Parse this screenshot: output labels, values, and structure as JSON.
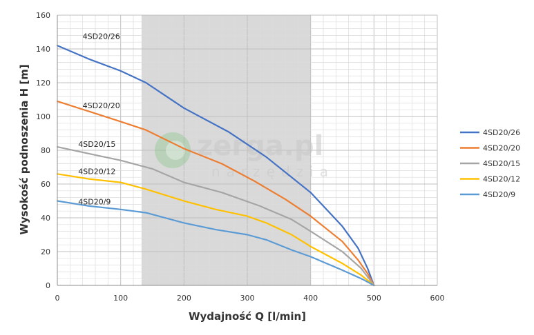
{
  "chart_data": {
    "type": "line",
    "xlabel": "Wydajność Q [l/min]",
    "ylabel": "Wysokość podnoszenia H [m]",
    "xlim": [
      0,
      600
    ],
    "ylim": [
      0,
      160
    ],
    "x_ticks": [
      "0",
      "100",
      "200",
      "300",
      "400",
      "500",
      "600"
    ],
    "y_ticks": [
      "0",
      "20",
      "40",
      "60",
      "80",
      "100",
      "120",
      "140",
      "160"
    ],
    "grid": true,
    "legend_position": "right",
    "shaded_range": [
      133,
      400
    ],
    "shaded_color": "#d9d9d9",
    "series": [
      {
        "name": "4SD20/26",
        "color": "#4472c4",
        "points": [
          [
            0,
            142
          ],
          [
            50,
            134
          ],
          [
            100,
            127
          ],
          [
            140,
            120
          ],
          [
            200,
            105
          ],
          [
            270,
            91
          ],
          [
            330,
            76
          ],
          [
            400,
            55
          ],
          [
            450,
            35
          ],
          [
            475,
            22
          ],
          [
            490,
            10
          ],
          [
            500,
            0
          ]
        ]
      },
      {
        "name": "4SD20/20",
        "color": "#ed7d31",
        "points": [
          [
            0,
            109
          ],
          [
            50,
            103
          ],
          [
            100,
            97
          ],
          [
            140,
            92
          ],
          [
            200,
            81
          ],
          [
            260,
            72
          ],
          [
            310,
            62
          ],
          [
            360,
            51
          ],
          [
            400,
            41
          ],
          [
            450,
            26
          ],
          [
            475,
            15
          ],
          [
            490,
            7
          ],
          [
            500,
            0
          ]
        ]
      },
      {
        "name": "4SD20/15",
        "color": "#a5a5a5",
        "points": [
          [
            0,
            82
          ],
          [
            50,
            78
          ],
          [
            100,
            74
          ],
          [
            150,
            69
          ],
          [
            200,
            61
          ],
          [
            260,
            55
          ],
          [
            320,
            47
          ],
          [
            370,
            39
          ],
          [
            400,
            32
          ],
          [
            450,
            20
          ],
          [
            480,
            10
          ],
          [
            500,
            0
          ]
        ]
      },
      {
        "name": "4SD20/12",
        "color": "#ffc000",
        "points": [
          [
            0,
            66
          ],
          [
            50,
            63
          ],
          [
            100,
            61
          ],
          [
            140,
            57
          ],
          [
            200,
            50
          ],
          [
            250,
            45
          ],
          [
            300,
            41
          ],
          [
            330,
            37
          ],
          [
            370,
            30
          ],
          [
            400,
            23
          ],
          [
            450,
            13
          ],
          [
            480,
            6
          ],
          [
            500,
            0
          ]
        ]
      },
      {
        "name": "4SD20/9",
        "color": "#5b9bd5",
        "points": [
          [
            0,
            50
          ],
          [
            50,
            47
          ],
          [
            100,
            45
          ],
          [
            140,
            43
          ],
          [
            200,
            37
          ],
          [
            250,
            33
          ],
          [
            300,
            30
          ],
          [
            330,
            27
          ],
          [
            370,
            21
          ],
          [
            400,
            17
          ],
          [
            450,
            9
          ],
          [
            480,
            4
          ],
          [
            500,
            0
          ]
        ]
      }
    ],
    "curve_labels": [
      {
        "text": "4SD20/26",
        "x": 40,
        "y": 146
      },
      {
        "text": "4SD20/20",
        "x": 40,
        "y": 105
      },
      {
        "text": "4SD20/15",
        "x": 33,
        "y": 82
      },
      {
        "text": "4SD20/12",
        "x": 33,
        "y": 66
      },
      {
        "text": "4SD20/9",
        "x": 33,
        "y": 48
      }
    ]
  },
  "watermark": {
    "brand": "zerga.pl",
    "sub": "narzędzia"
  }
}
